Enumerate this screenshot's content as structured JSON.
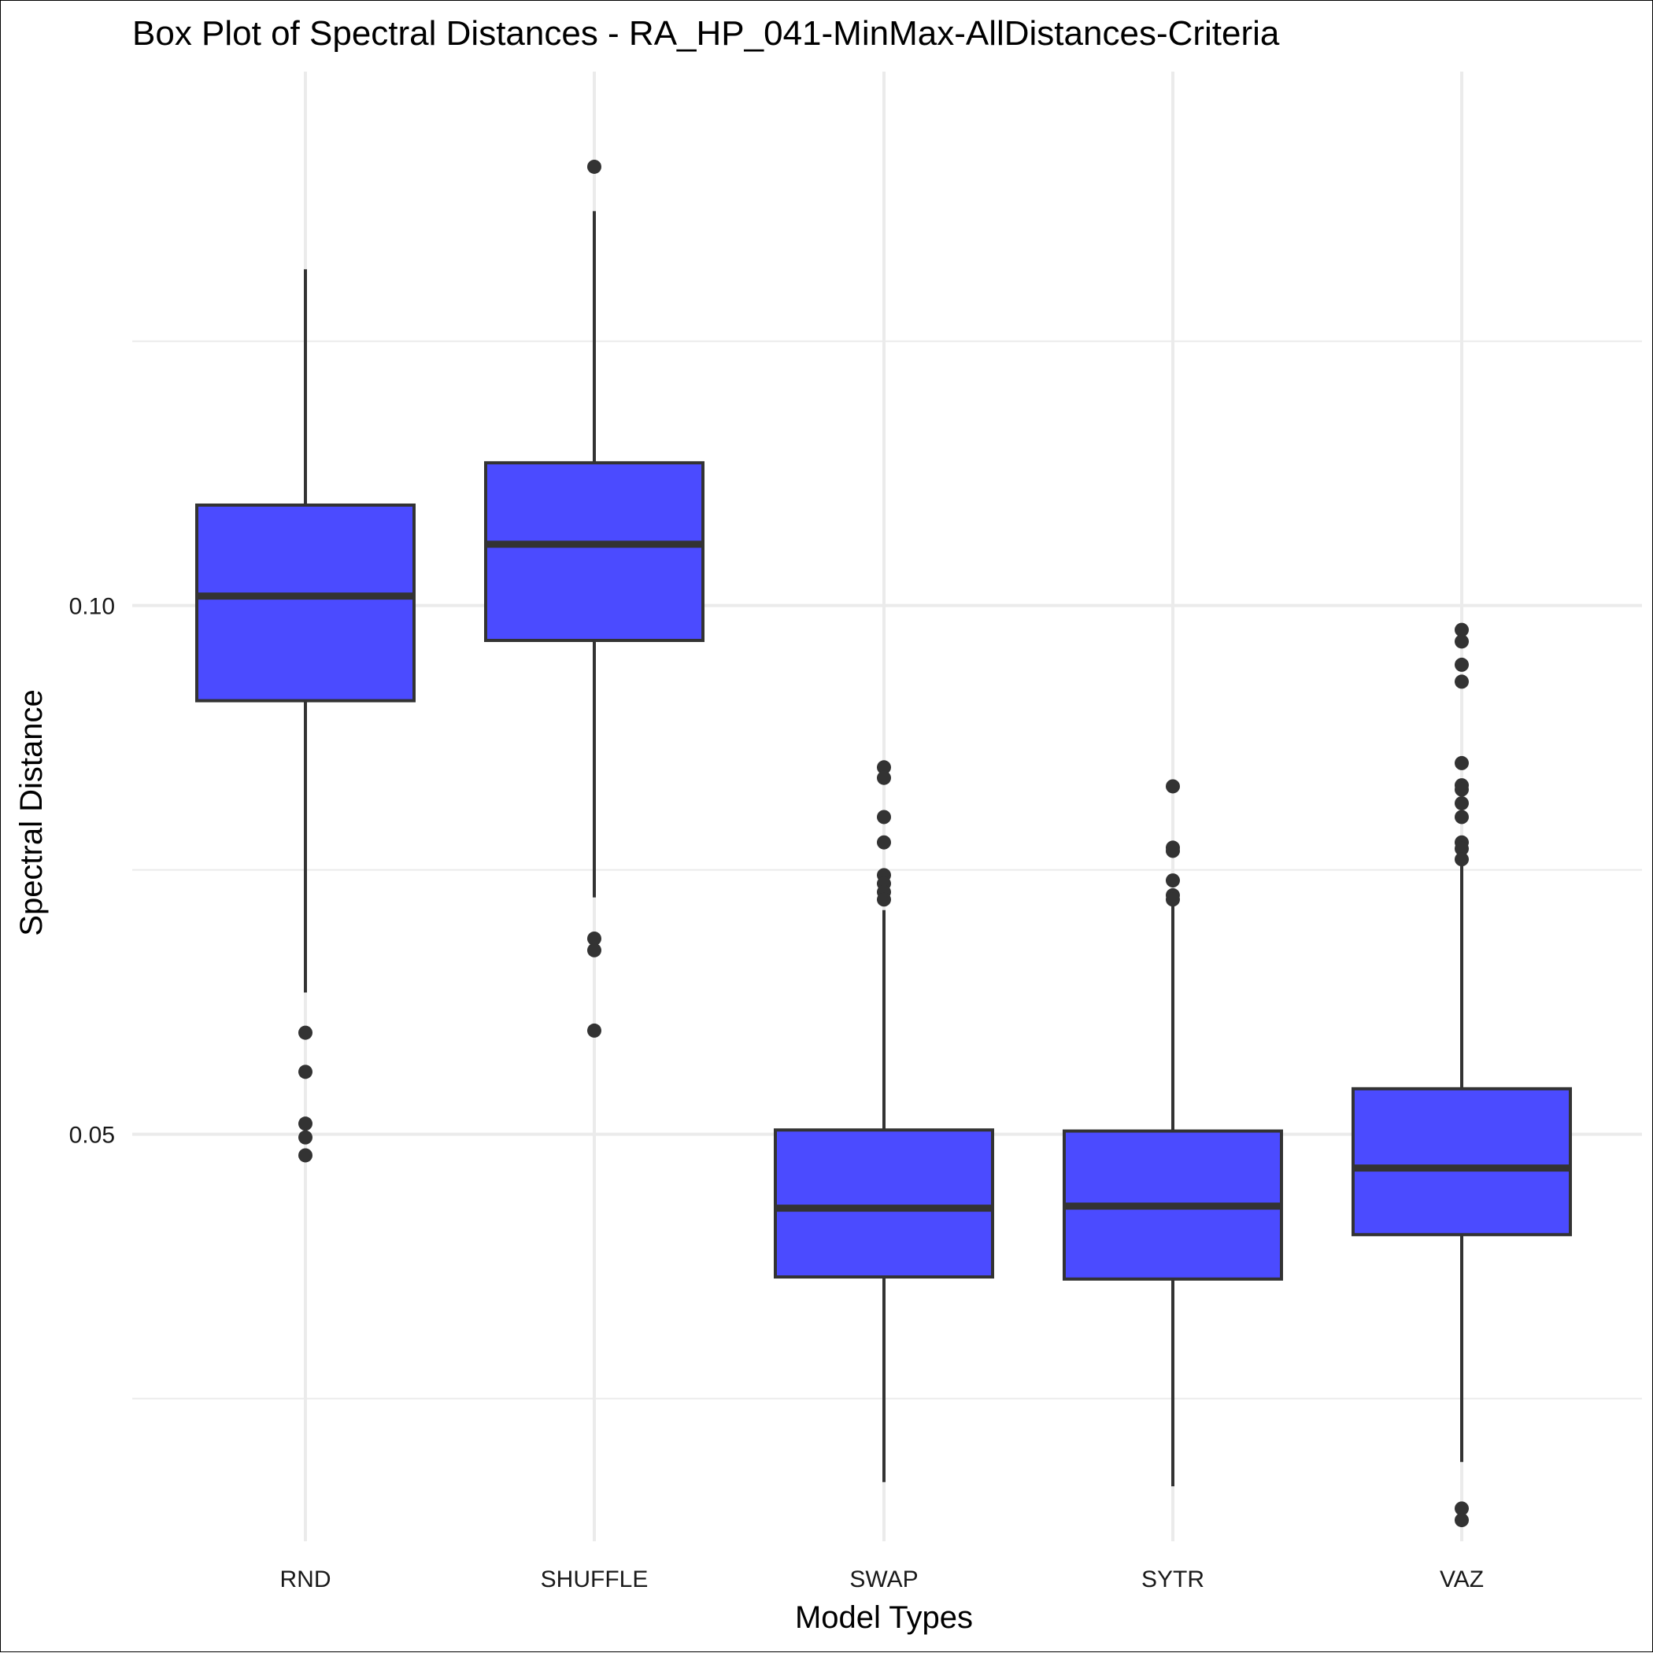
{
  "chart_data": {
    "type": "box",
    "title": "Box Plot of Spectral Distances -  RA_HP_041-MinMax-AllDistances-Criteria",
    "xlabel": "Model Types",
    "ylabel": "Spectral Distance",
    "categories": [
      "RND",
      "SHUFFLE",
      "SWAP",
      "SYTR",
      "VAZ"
    ],
    "y_ticks": [
      0.05,
      0.1
    ],
    "y_tick_labels": [
      "0.05",
      "0.10"
    ],
    "y_minor_ticks": [
      0.025,
      0.075,
      0.125
    ],
    "ylim": [
      0.0115,
      0.1505
    ],
    "grid": true,
    "legend": "none",
    "fill_color": "#4b4bff",
    "line_color": "#333333",
    "boxes": [
      {
        "category": "RND",
        "whisker_low": 0.0634,
        "q1": 0.091,
        "median": 0.1009,
        "q3": 0.1095,
        "whisker_high": 0.1318,
        "outliers": [
          0.0596,
          0.0559,
          0.051,
          0.0497,
          0.048
        ]
      },
      {
        "category": "SHUFFLE",
        "whisker_low": 0.0724,
        "q1": 0.0967,
        "median": 0.1058,
        "q3": 0.1135,
        "whisker_high": 0.1373,
        "outliers": [
          0.1415,
          0.0685,
          0.0674,
          0.0598
        ]
      },
      {
        "category": "SWAP",
        "whisker_low": 0.0171,
        "q1": 0.0365,
        "median": 0.043,
        "q3": 0.0504,
        "whisker_high": 0.0712,
        "outliers": [
          0.0847,
          0.0837,
          0.08,
          0.0776,
          0.0745,
          0.0737,
          0.0729,
          0.0722
        ]
      },
      {
        "category": "SYTR",
        "whisker_low": 0.0167,
        "q1": 0.0363,
        "median": 0.0432,
        "q3": 0.0503,
        "whisker_high": 0.0716,
        "outliers": [
          0.0829,
          0.0771,
          0.0768,
          0.074,
          0.0726,
          0.0722
        ]
      },
      {
        "category": "VAZ",
        "whisker_low": 0.019,
        "q1": 0.0405,
        "median": 0.0468,
        "q3": 0.0543,
        "whisker_high": 0.076,
        "outliers": [
          0.0977,
          0.0966,
          0.0944,
          0.0928,
          0.0851,
          0.083,
          0.0826,
          0.0813,
          0.08,
          0.0776,
          0.077,
          0.076,
          0.0146,
          0.0135
        ]
      }
    ]
  }
}
